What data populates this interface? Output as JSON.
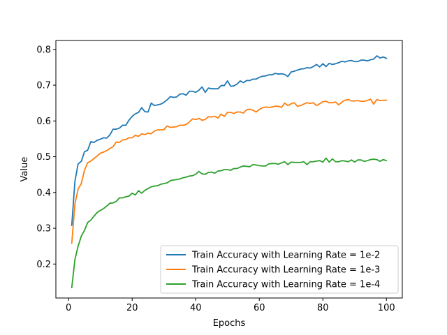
{
  "chart_data": {
    "type": "line",
    "title": "",
    "xlabel": "Epochs",
    "ylabel": "Value",
    "xlim": [
      -4,
      105
    ],
    "ylim": [
      0.105,
      0.825
    ],
    "xticks": [
      0,
      20,
      40,
      60,
      80,
      100
    ],
    "yticks": [
      0.2,
      0.3,
      0.4,
      0.5,
      0.6,
      0.7,
      0.8
    ],
    "xtick_labels": [
      "0",
      "20",
      "40",
      "60",
      "80",
      "100"
    ],
    "ytick_labels": [
      "0.2",
      "0.3",
      "0.4",
      "0.5",
      "0.6",
      "0.7",
      "0.8"
    ],
    "grid": false,
    "legend_position": "lower-right",
    "x": [
      1,
      2,
      3,
      4,
      5,
      6,
      7,
      8,
      9,
      10,
      11,
      12,
      13,
      14,
      15,
      16,
      17,
      18,
      19,
      20,
      21,
      22,
      23,
      24,
      25,
      26,
      27,
      28,
      29,
      30,
      31,
      32,
      33,
      34,
      35,
      36,
      37,
      38,
      39,
      40,
      41,
      42,
      43,
      44,
      45,
      46,
      47,
      48,
      49,
      50,
      51,
      52,
      53,
      54,
      55,
      56,
      57,
      58,
      59,
      60,
      61,
      62,
      63,
      64,
      65,
      66,
      67,
      68,
      69,
      70,
      71,
      72,
      73,
      74,
      75,
      76,
      77,
      78,
      79,
      80,
      81,
      82,
      83,
      84,
      85,
      86,
      87,
      88,
      89,
      90,
      91,
      92,
      93,
      94,
      95,
      96,
      97,
      98,
      99,
      100
    ],
    "series": [
      {
        "name": "Train Accuracy with Learning Rate = 1e-2",
        "color": "#1f77b4",
        "values": [
          0.308,
          0.432,
          0.48,
          0.487,
          0.514,
          0.518,
          0.542,
          0.54,
          0.546,
          0.549,
          0.553,
          0.552,
          0.561,
          0.577,
          0.577,
          0.58,
          0.588,
          0.588,
          0.602,
          0.613,
          0.62,
          0.624,
          0.637,
          0.626,
          0.625,
          0.65,
          0.643,
          0.645,
          0.647,
          0.652,
          0.659,
          0.668,
          0.666,
          0.667,
          0.675,
          0.676,
          0.672,
          0.683,
          0.683,
          0.68,
          0.686,
          0.695,
          0.68,
          0.692,
          0.69,
          0.69,
          0.69,
          0.699,
          0.699,
          0.712,
          0.697,
          0.698,
          0.703,
          0.712,
          0.707,
          0.713,
          0.713,
          0.717,
          0.717,
          0.722,
          0.725,
          0.726,
          0.729,
          0.729,
          0.733,
          0.731,
          0.732,
          0.73,
          0.724,
          0.737,
          0.739,
          0.742,
          0.745,
          0.746,
          0.749,
          0.748,
          0.752,
          0.758,
          0.751,
          0.76,
          0.752,
          0.761,
          0.758,
          0.76,
          0.763,
          0.767,
          0.765,
          0.768,
          0.769,
          0.766,
          0.766,
          0.77,
          0.77,
          0.768,
          0.771,
          0.773,
          0.782,
          0.776,
          0.779,
          0.775
        ]
      },
      {
        "name": "Train Accuracy with Learning Rate = 1e-3",
        "color": "#ff7f0e",
        "values": [
          0.258,
          0.368,
          0.41,
          0.425,
          0.462,
          0.483,
          0.488,
          0.495,
          0.502,
          0.51,
          0.513,
          0.517,
          0.523,
          0.528,
          0.541,
          0.54,
          0.547,
          0.548,
          0.553,
          0.553,
          0.56,
          0.557,
          0.564,
          0.562,
          0.566,
          0.564,
          0.572,
          0.575,
          0.575,
          0.576,
          0.586,
          0.582,
          0.583,
          0.584,
          0.588,
          0.588,
          0.59,
          0.597,
          0.606,
          0.604,
          0.607,
          0.602,
          0.604,
          0.612,
          0.611,
          0.613,
          0.608,
          0.619,
          0.613,
          0.624,
          0.624,
          0.621,
          0.625,
          0.625,
          0.622,
          0.631,
          0.633,
          0.63,
          0.625,
          0.632,
          0.637,
          0.639,
          0.638,
          0.639,
          0.641,
          0.641,
          0.638,
          0.65,
          0.643,
          0.648,
          0.651,
          0.641,
          0.643,
          0.647,
          0.651,
          0.649,
          0.651,
          0.643,
          0.648,
          0.654,
          0.655,
          0.651,
          0.651,
          0.653,
          0.645,
          0.653,
          0.658,
          0.66,
          0.656,
          0.656,
          0.657,
          0.655,
          0.655,
          0.657,
          0.661,
          0.647,
          0.66,
          0.657,
          0.658,
          0.658
        ]
      },
      {
        "name": "Train Accuracy with Learning Rate = 1e-4",
        "color": "#2ca02c",
        "values": [
          0.134,
          0.213,
          0.25,
          0.278,
          0.294,
          0.316,
          0.323,
          0.334,
          0.344,
          0.35,
          0.355,
          0.362,
          0.37,
          0.371,
          0.375,
          0.385,
          0.385,
          0.388,
          0.39,
          0.398,
          0.393,
          0.405,
          0.398,
          0.406,
          0.411,
          0.416,
          0.418,
          0.419,
          0.423,
          0.425,
          0.427,
          0.433,
          0.435,
          0.436,
          0.438,
          0.441,
          0.443,
          0.446,
          0.447,
          0.451,
          0.459,
          0.452,
          0.451,
          0.456,
          0.457,
          0.454,
          0.46,
          0.461,
          0.464,
          0.464,
          0.462,
          0.467,
          0.467,
          0.471,
          0.474,
          0.473,
          0.472,
          0.478,
          0.477,
          0.475,
          0.474,
          0.474,
          0.48,
          0.481,
          0.481,
          0.479,
          0.483,
          0.486,
          0.478,
          0.485,
          0.484,
          0.484,
          0.484,
          0.486,
          0.478,
          0.486,
          0.486,
          0.488,
          0.489,
          0.485,
          0.496,
          0.485,
          0.494,
          0.486,
          0.486,
          0.489,
          0.488,
          0.486,
          0.491,
          0.485,
          0.491,
          0.491,
          0.487,
          0.489,
          0.492,
          0.493,
          0.492,
          0.487,
          0.492,
          0.489
        ]
      }
    ]
  }
}
